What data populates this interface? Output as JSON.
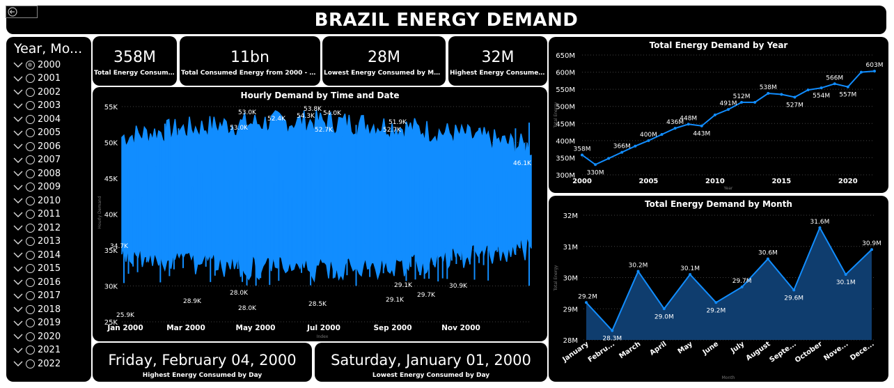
{
  "header": {
    "title": "BRAZIL ENERGY DEMAND"
  },
  "slicer": {
    "title": "Year, Mo...",
    "items": [
      "2000",
      "2001",
      "2002",
      "2003",
      "2004",
      "2005",
      "2006",
      "2007",
      "2008",
      "2009",
      "2010",
      "2011",
      "2012",
      "2013",
      "2014",
      "2015",
      "2016",
      "2017",
      "2018",
      "2019",
      "2020",
      "2021",
      "2022"
    ],
    "selected": "2000"
  },
  "kpis": [
    {
      "value": "358M",
      "label": "Total Energy Consumed"
    },
    {
      "value": "11bn",
      "label": "Total Consumed Energy from 2000 - 2022"
    },
    {
      "value": "28M",
      "label": "Lowest Energy Consumed by Month"
    },
    {
      "value": "32M",
      "label": "Highest Energy Consumed..."
    }
  ],
  "day_cards": [
    {
      "value": "Friday, February 04, 2000",
      "label": "Highest Energy Consumed by Day"
    },
    {
      "value": "Saturday, January 01, 2000",
      "label": "Lowest Energy Consumed by Day"
    }
  ],
  "colors": {
    "accent": "#118dff",
    "area_fill": "#0f3d6e",
    "panel": "#000000",
    "text": "#ffffff",
    "grid": "#555555"
  },
  "chart_data": [
    {
      "type": "area",
      "title": "Hourly Demand by Time and Date",
      "xlabel": "Index",
      "ylabel": "Hourly Demand",
      "ylim": [
        25000,
        55000
      ],
      "yticks": [
        "25K",
        "30K",
        "35K",
        "40K",
        "45K",
        "50K",
        "55K"
      ],
      "xticks": [
        "Jan 2000",
        "Mar 2000",
        "May 2000",
        "Jul 2000",
        "Sep 2000",
        "Nov 2000"
      ],
      "annotations": [
        "34.7K",
        "25.9K",
        "28.9K",
        "53.0K",
        "53.0K",
        "28.0K",
        "28.0K",
        "52.4K",
        "54.3K",
        "53.8K",
        "52.7K",
        "54.0K",
        "28.5K",
        "51.9K",
        "52.7K",
        "29.1K",
        "29.1K",
        "29.7K",
        "30.9K",
        "46.1K"
      ]
    },
    {
      "type": "line",
      "title": "Total Energy Demand by Year",
      "xlabel": "Year",
      "ylabel": "Total Energy",
      "ylim": [
        300,
        650
      ],
      "yticks": [
        "300M",
        "350M",
        "400M",
        "450M",
        "500M",
        "550M",
        "600M",
        "650M"
      ],
      "xticks": [
        "2000",
        "2005",
        "2010",
        "2015",
        "2020"
      ],
      "x": [
        2000,
        2001,
        2002,
        2003,
        2004,
        2005,
        2006,
        2007,
        2008,
        2009,
        2010,
        2011,
        2012,
        2013,
        2014,
        2015,
        2016,
        2017,
        2018,
        2019,
        2020,
        2021,
        2022
      ],
      "values": [
        358,
        330,
        348,
        366,
        384,
        400,
        418,
        436,
        448,
        443,
        475,
        491,
        512,
        512,
        538,
        535,
        527,
        548,
        554,
        566,
        557,
        600,
        603
      ],
      "labels": {
        "2000": "358M",
        "2001": "330M",
        "2003": "366M",
        "2005": "400M",
        "2007": "436M",
        "2008": "448M",
        "2009": "443M",
        "2011": "491M",
        "2012": "512M",
        "2014": "538M",
        "2016": "527M",
        "2018": "554M",
        "2019": "566M",
        "2020": "557M",
        "2022": "603M"
      }
    },
    {
      "type": "area",
      "title": "Total Energy Demand by Month",
      "xlabel": "Month",
      "ylabel": "Total Energy",
      "ylim": [
        28,
        32
      ],
      "yticks": [
        "28M",
        "29M",
        "30M",
        "31M",
        "32M"
      ],
      "categories": [
        "January",
        "Febru...",
        "March",
        "April",
        "May",
        "June",
        "July",
        "August",
        "Septe...",
        "October",
        "Nove...",
        "Dece..."
      ],
      "values": [
        29.2,
        28.3,
        30.2,
        29.0,
        30.1,
        29.2,
        29.7,
        30.6,
        29.6,
        31.6,
        30.1,
        30.9
      ],
      "labels": [
        "29.2M",
        "28.3M",
        "30.2M",
        "29.0M",
        "30.1M",
        "29.2M",
        "29.7M",
        "30.6M",
        "29.6M",
        "31.6M",
        "30.1M",
        "30.9M"
      ]
    }
  ]
}
